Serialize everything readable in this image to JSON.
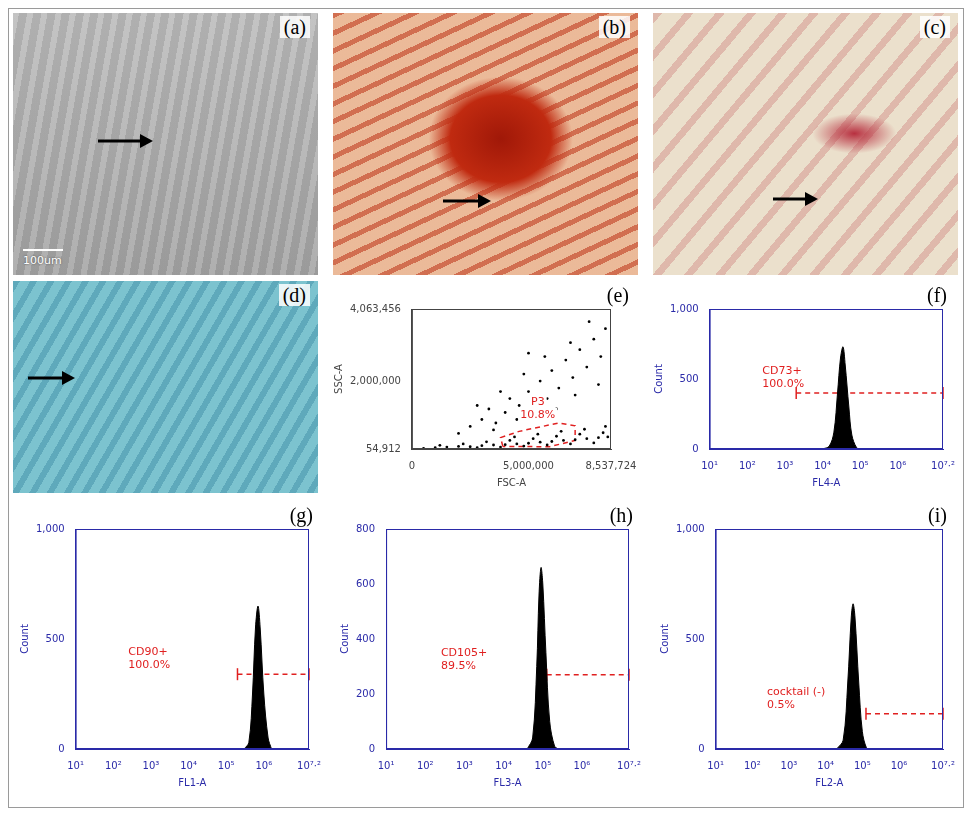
{
  "image_panels": [
    {
      "label": "(a)",
      "scale_bar": "100um"
    },
    {
      "label": "(b)"
    },
    {
      "label": "(c)"
    },
    {
      "label": "(d)"
    }
  ],
  "chart_data": [
    {
      "panel": "(e)",
      "type": "scatter",
      "x_label": "FSC-A",
      "y_label": "SSC-A",
      "color": "#000000",
      "grid": false,
      "x": [
        500000,
        1000000,
        1500000,
        2000000,
        2500000,
        3000000,
        3500000,
        4000000,
        4500000,
        5000000,
        5500000,
        6000000,
        6500000,
        7000000,
        7500000,
        8000000,
        8400000,
        1200000,
        2200000,
        3200000,
        4200000,
        5200000,
        6200000,
        7200000,
        8200000,
        2800000,
        3800000,
        4800000,
        5800000,
        6800000,
        7800000,
        4400000,
        5400000,
        6400000,
        7400000,
        8300000,
        2000000,
        2500000,
        3000000,
        3300000,
        3600000,
        4000000,
        4200000,
        4600000,
        5000000,
        5200000,
        5500000,
        5800000,
        6000000,
        6300000,
        6600000,
        6900000,
        7200000,
        7500000,
        7800000,
        8100000,
        8300000,
        3800000,
        4800000,
        5700000,
        6800000,
        7600000,
        2800000,
        6200000,
        7000000,
        8000000,
        5000000,
        4500000,
        3500000
      ],
      "values": [
        70000,
        90000,
        110000,
        130000,
        120000,
        150000,
        170000,
        180000,
        200000,
        220000,
        250000,
        270000,
        300000,
        320000,
        350000,
        380000,
        400000,
        160000,
        200000,
        260000,
        300000,
        350000,
        420000,
        480000,
        520000,
        90000,
        110000,
        140000,
        170000,
        200000,
        230000,
        400000,
        480000,
        560000,
        620000,
        700000,
        500000,
        700000,
        900000,
        1200000,
        800000,
        1100000,
        1500000,
        1300000,
        1700000,
        1000000,
        2000000,
        1500000,
        2300000,
        1800000,
        2600000,
        2100000,
        2900000,
        2400000,
        3200000,
        2700000,
        3500000,
        1700000,
        2200000,
        2700000,
        3100000,
        3700000,
        1300000,
        1200000,
        1600000,
        1900000,
        2800000,
        900000,
        600000
      ],
      "xlim": [
        0,
        8537724
      ],
      "xticks": [
        0,
        {
          "value": 5000000,
          "label": "5,000,000"
        },
        {
          "value": 8537724,
          "label": "8,537,724"
        }
      ],
      "ylim": [
        54912,
        4063456
      ],
      "yticks": [
        {
          "value": 54912,
          "label": "54,912"
        },
        {
          "value": 2000000,
          "label": "2,000,000"
        },
        {
          "value": 4063456,
          "label": "4,063,456"
        }
      ],
      "gate": {
        "x": [
          3900000,
          3800000,
          4600000,
          6300000,
          7000000,
          7000000,
          5900000
        ],
        "y": [
          130000,
          380000,
          560000,
          800000,
          720000,
          300000,
          120000
        ],
        "text": [
          "P3",
          "10.8%"
        ],
        "color": "#e02020"
      }
    },
    {
      "panel": "(f)",
      "type": "area",
      "x_label": "FL4-A",
      "y_label": "Count",
      "color": "#000000",
      "grid": false,
      "log": "x",
      "x": [
        10000,
        15000,
        20000,
        25000,
        30000,
        35000,
        40000,
        50000,
        60000,
        80000,
        100000
      ],
      "values": [
        0,
        20,
        120,
        400,
        650,
        730,
        600,
        300,
        100,
        10,
        0
      ],
      "xlim": [
        10,
        15848932
      ],
      "xticks": [
        {
          "value": 10,
          "label": "10¹"
        },
        {
          "value": 100,
          "label": "10²"
        },
        {
          "value": 1000,
          "label": "10³"
        },
        {
          "value": 10000,
          "label": "10⁴"
        },
        {
          "value": 100000,
          "label": "10⁵"
        },
        {
          "value": 1000000,
          "label": "10⁶"
        },
        {
          "value": 15848932,
          "label": "10⁷·²"
        }
      ],
      "ylim": [
        0,
        1000
      ],
      "yticks": [
        0,
        500,
        {
          "value": 1000,
          "label": "1,000"
        }
      ],
      "gate": {
        "x": [
          1995,
          15848932
        ],
        "y": 400,
        "text": [
          "CD73+",
          "100.0%"
        ],
        "color": "#e02020"
      }
    },
    {
      "panel": "(g)",
      "type": "area",
      "x_label": "FL1-A",
      "y_label": "Count",
      "color": "#000000",
      "grid": false,
      "log": "x",
      "x": [
        300000,
        400000,
        500000,
        600000,
        700000,
        800000,
        1000000,
        1300000,
        1600000
      ],
      "values": [
        0,
        30,
        250,
        550,
        650,
        550,
        250,
        50,
        0
      ],
      "xlim": [
        10,
        15848932
      ],
      "xticks": [
        {
          "value": 10,
          "label": "10¹"
        },
        {
          "value": 100,
          "label": "10²"
        },
        {
          "value": 1000,
          "label": "10³"
        },
        {
          "value": 10000,
          "label": "10⁴"
        },
        {
          "value": 100000,
          "label": "10⁵"
        },
        {
          "value": 1000000,
          "label": "10⁶"
        },
        {
          "value": 15848932,
          "label": "10⁷·²"
        }
      ],
      "ylim": [
        0,
        1000
      ],
      "yticks": [
        0,
        500,
        {
          "value": 1000,
          "label": "1,000"
        }
      ],
      "gate": {
        "x": [
          199526,
          15848932
        ],
        "y": 340,
        "text": [
          "CD90+",
          "100.0%"
        ],
        "color": "#e02020"
      }
    },
    {
      "panel": "(h)",
      "type": "area",
      "x_label": "FL3-A",
      "y_label": "Count",
      "color": "#000000",
      "grid": false,
      "log": "x",
      "x": [
        40000,
        55000,
        70000,
        80000,
        90000,
        100000,
        120000,
        150000,
        200000,
        250000
      ],
      "values": [
        0,
        40,
        300,
        560,
        660,
        600,
        350,
        100,
        10,
        0
      ],
      "xlim": [
        10,
        15848932
      ],
      "xticks": [
        {
          "value": 10,
          "label": "10¹"
        },
        {
          "value": 100,
          "label": "10²"
        },
        {
          "value": 1000,
          "label": "10³"
        },
        {
          "value": 10000,
          "label": "10⁴"
        },
        {
          "value": 100000,
          "label": "10⁵"
        },
        {
          "value": 1000000,
          "label": "10⁶"
        },
        {
          "value": 15848932,
          "label": "10⁷·²"
        }
      ],
      "ylim": [
        0,
        800
      ],
      "yticks": [
        0,
        200,
        400,
        600,
        800
      ],
      "gate": {
        "x": [
          125893,
          15848932
        ],
        "y": 270,
        "text": [
          "CD105+",
          "89.5%"
        ],
        "color": "#e02020"
      }
    },
    {
      "panel": "(i)",
      "type": "area",
      "x_label": "FL2-A",
      "y_label": "Count",
      "color": "#000000",
      "grid": false,
      "log": "x",
      "x": [
        20000,
        30000,
        40000,
        50000,
        56000,
        63000,
        80000,
        100000,
        130000,
        160000
      ],
      "values": [
        0,
        40,
        300,
        600,
        660,
        600,
        300,
        80,
        5,
        0
      ],
      "xlim": [
        10,
        15848932
      ],
      "xticks": [
        {
          "value": 10,
          "label": "10¹"
        },
        {
          "value": 100,
          "label": "10²"
        },
        {
          "value": 1000,
          "label": "10³"
        },
        {
          "value": 10000,
          "label": "10⁴"
        },
        {
          "value": 100000,
          "label": "10⁵"
        },
        {
          "value": 1000000,
          "label": "10⁶"
        },
        {
          "value": 15848932,
          "label": "10⁷·²"
        }
      ],
      "ylim": [
        0,
        1000
      ],
      "yticks": [
        0,
        500,
        {
          "value": 1000,
          "label": "1,000"
        }
      ],
      "gate": {
        "x": [
          125893,
          15848932
        ],
        "y": 160,
        "text": [
          "cocktail (-)",
          "0.5%"
        ],
        "color": "#e02020"
      }
    }
  ]
}
